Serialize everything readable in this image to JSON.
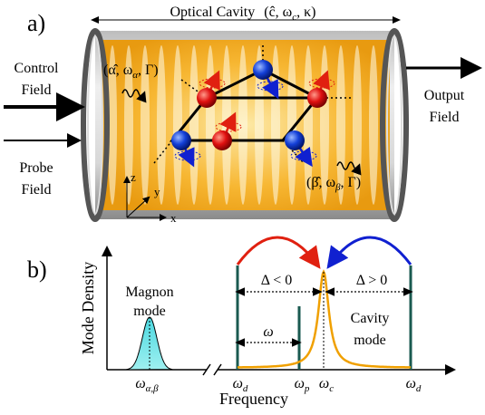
{
  "panel_a": {
    "label": "a)",
    "cavity_title": [
      "Optical Cavity",
      "(ĉ, ω",
      {
        "sub": "c"
      },
      ", κ)"
    ],
    "control_field": [
      "Control",
      "Field"
    ],
    "probe_field": [
      "Probe",
      "Field"
    ],
    "output_field": [
      "Output",
      "Field"
    ],
    "magnon_alpha": [
      "(α̂, ω",
      {
        "sub": "α"
      },
      ", Γ)"
    ],
    "magnon_beta": [
      "(β̂, ω",
      {
        "sub": "β"
      },
      ", Γ)"
    ],
    "axes": [
      "z",
      "y",
      "x"
    ]
  },
  "panel_b": {
    "label": "b)",
    "y_axis": "Mode Density",
    "x_axis": "Frequency",
    "magnon_mode": [
      "Magnon",
      "mode"
    ],
    "cavity_mode": [
      "Cavity",
      "mode"
    ],
    "detuning_negative": "Δ < 0",
    "detuning_positive": "Δ > 0",
    "omega": "ω",
    "tick_labels": [
      [
        "ω",
        {
          "sub": "α,β"
        }
      ],
      [
        "ω",
        {
          "sub": "d"
        }
      ],
      [
        "ω",
        {
          "sub": "p"
        }
      ],
      [
        "ω",
        {
          "sub": "c"
        }
      ],
      [
        "ω",
        {
          "sub": "d"
        }
      ]
    ]
  }
}
